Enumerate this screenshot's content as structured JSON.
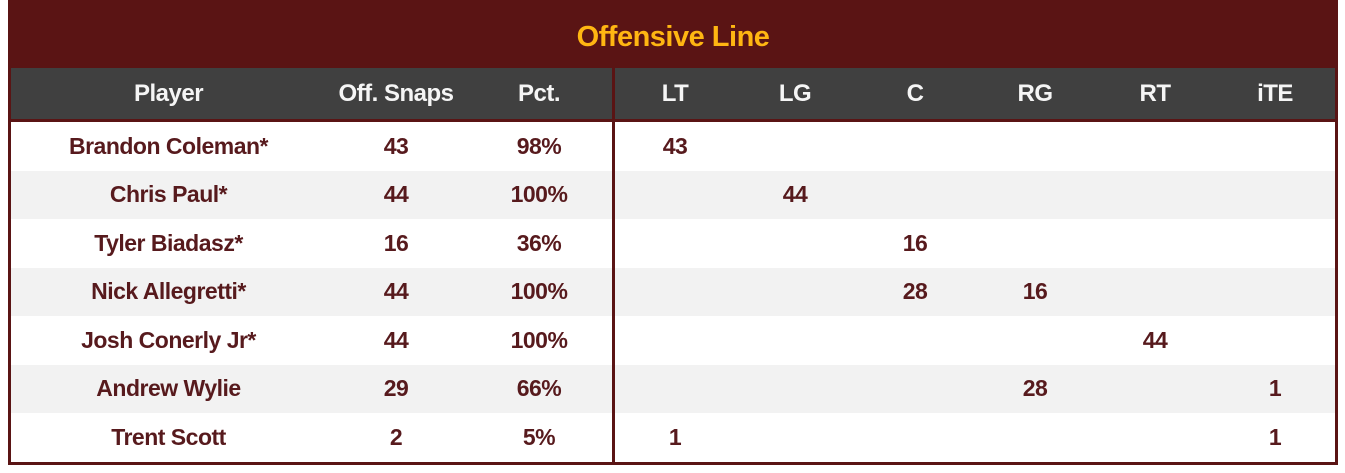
{
  "chart_data": {
    "type": "table",
    "title": "Offensive Line",
    "columns": [
      "Player",
      "Off. Snaps",
      "Pct.",
      "LT",
      "LG",
      "C",
      "RG",
      "RT",
      "iTE"
    ],
    "rows": [
      [
        "Brandon Coleman*",
        "43",
        "98%",
        "43",
        "",
        "",
        "",
        "",
        ""
      ],
      [
        "Chris Paul*",
        "44",
        "100%",
        "",
        "44",
        "",
        "",
        "",
        ""
      ],
      [
        "Tyler Biadasz*",
        "16",
        "36%",
        "",
        "",
        "16",
        "",
        "",
        ""
      ],
      [
        "Nick Allegretti*",
        "44",
        "100%",
        "",
        "",
        "28",
        "16",
        "",
        ""
      ],
      [
        "Josh Conerly Jr*",
        "44",
        "100%",
        "",
        "",
        "",
        "",
        "44",
        ""
      ],
      [
        "Andrew Wylie",
        "29",
        "66%",
        "",
        "",
        "",
        "28",
        "",
        "1"
      ],
      [
        "Trent Scott",
        "2",
        "5%",
        "1",
        "",
        "",
        "",
        "",
        "1"
      ]
    ],
    "layout": {
      "divider_after_column": "Pct.",
      "row_striping": "alternating",
      "text_alignment": "center"
    }
  },
  "colors": {
    "burgundy": "#5A1414",
    "gold": "#FFB612",
    "header_bg": "#404040",
    "header_text": "#F5F5F5",
    "data_text": "#571A1D",
    "row_bg": "#FFFFFF",
    "alt_row_bg": "#F2F2F2"
  }
}
